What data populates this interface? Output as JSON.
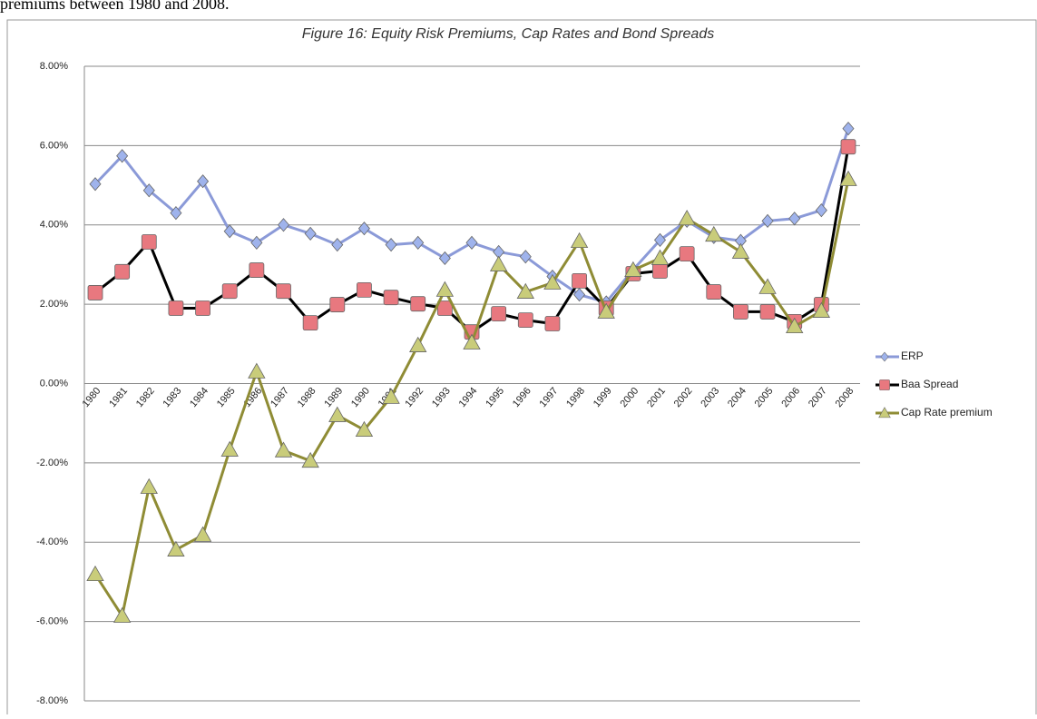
{
  "context_text": "premiums between 1980 and 2008.",
  "chart_data": {
    "type": "line",
    "title": "Figure 16: Equity Risk Premiums, Cap Rates and Bond Spreads",
    "categories": [
      "1980",
      "1981",
      "1982",
      "1983",
      "1984",
      "1985",
      "1986",
      "1987",
      "1988",
      "1989",
      "1990",
      "1991",
      "1992",
      "1993",
      "1994",
      "1995",
      "1996",
      "1997",
      "1998",
      "1999",
      "2000",
      "2001",
      "2002",
      "2003",
      "2004",
      "2005",
      "2006",
      "2007",
      "2008"
    ],
    "series": [
      {
        "name": "ERP",
        "color": "#8b9ad8",
        "marker": "diamond",
        "marker_color": "#9fb3ec",
        "values": [
          5.03,
          5.74,
          4.87,
          4.3,
          5.1,
          3.84,
          3.55,
          4.0,
          3.78,
          3.5,
          3.91,
          3.5,
          3.55,
          3.16,
          3.55,
          3.32,
          3.2,
          2.7,
          2.24,
          2.05,
          2.87,
          3.62,
          4.1,
          3.69,
          3.6,
          4.1,
          4.16,
          4.37,
          6.43
        ]
      },
      {
        "name": "Baa Spread",
        "color": "#000000",
        "marker": "square",
        "marker_color": "#e8787f",
        "values": [
          2.29,
          2.82,
          3.57,
          1.9,
          1.9,
          2.33,
          2.86,
          2.33,
          1.53,
          1.99,
          2.36,
          2.17,
          2.01,
          1.9,
          1.3,
          1.76,
          1.6,
          1.51,
          2.59,
          1.9,
          2.77,
          2.84,
          3.27,
          2.31,
          1.81,
          1.81,
          1.56,
          1.99,
          5.97
        ]
      },
      {
        "name": "Cap Rate premium",
        "color": "#8f8c35",
        "marker": "triangle",
        "marker_color": "#c9cc7a",
        "values": [
          -4.81,
          -5.86,
          -2.61,
          -4.19,
          -3.82,
          -1.67,
          0.3,
          -1.69,
          -1.95,
          -0.8,
          -1.17,
          -0.34,
          0.96,
          2.36,
          1.03,
          3.0,
          2.31,
          2.54,
          3.59,
          1.81,
          2.86,
          3.16,
          4.16,
          3.75,
          3.32,
          2.43,
          1.44,
          1.83,
          5.15
        ]
      }
    ],
    "ylim": [
      -8,
      8
    ],
    "yticks": [
      {
        "value": -8,
        "label": "-8.00%"
      },
      {
        "value": -6,
        "label": "-6.00%"
      },
      {
        "value": -4,
        "label": "-4.00%"
      },
      {
        "value": -2,
        "label": "-2.00%"
      },
      {
        "value": 0,
        "label": "0.00%"
      },
      {
        "value": 2,
        "label": "2.00%"
      },
      {
        "value": 4,
        "label": "4.00%"
      },
      {
        "value": 6,
        "label": "6.00%"
      },
      {
        "value": 8,
        "label": "8.00%"
      }
    ],
    "grid": true,
    "legend": "right"
  }
}
